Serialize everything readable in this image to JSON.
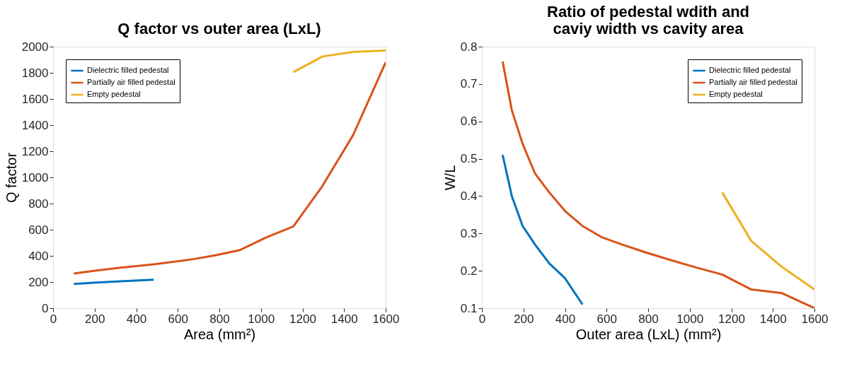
{
  "chart_data": [
    {
      "type": "line",
      "title": "Q factor vs outer area (LxL)",
      "xlabel": "Area (mm²)",
      "ylabel": "Q factor",
      "xlim": [
        0,
        1600
      ],
      "xticks": [
        0,
        200,
        400,
        600,
        800,
        1000,
        1200,
        1400,
        1600
      ],
      "ylim": [
        0,
        2000
      ],
      "yticks": [
        0,
        200,
        400,
        600,
        800,
        1000,
        1200,
        1400,
        1600,
        1800,
        2000
      ],
      "grid": false,
      "legend": "top left",
      "marker": "none",
      "line_style": "solid",
      "series": [
        {
          "name": "Dielectric filled pedestal",
          "color": "#0072bd",
          "x": [
            100,
            196,
            324,
            484
          ],
          "values": [
            185,
            195,
            205,
            218
          ]
        },
        {
          "name": "Partially air filled pedestal",
          "color": "#d95319",
          "x": [
            100,
            196,
            324,
            484,
            676,
            784,
            900,
            1024,
            1156,
            1296,
            1444,
            1600
          ],
          "values": [
            265,
            285,
            310,
            335,
            375,
            405,
            445,
            540,
            625,
            935,
            1325,
            1880
          ]
        },
        {
          "name": "Empty pedestal",
          "color": "#edb120",
          "x": [
            1156,
            1296,
            1444,
            1600
          ],
          "values": [
            1805,
            1925,
            1960,
            1970
          ]
        }
      ]
    },
    {
      "type": "line",
      "title": "Ratio of pedestal wdith and\ncaviy width vs cavity area",
      "xlabel": "Outer area (LxL) (mm²)",
      "ylabel": "W/L",
      "xlim": [
        0,
        1600
      ],
      "xticks": [
        0,
        200,
        400,
        600,
        800,
        1000,
        1200,
        1400,
        1600
      ],
      "ylim": [
        0.1,
        0.8
      ],
      "yticks": [
        0.1,
        0.2,
        0.3,
        0.4,
        0.5,
        0.6,
        0.7,
        0.8
      ],
      "grid": false,
      "legend": "top right",
      "marker": "none",
      "line_style": "solid",
      "series": [
        {
          "name": "Dielectric filled pedestal",
          "color": "#0072bd",
          "x": [
            100,
            144,
            196,
            256,
            324,
            400,
            484
          ],
          "values": [
            0.51,
            0.4,
            0.32,
            0.27,
            0.22,
            0.18,
            0.11
          ]
        },
        {
          "name": "Partially air filled pedestal",
          "color": "#d95319",
          "x": [
            100,
            144,
            196,
            256,
            324,
            400,
            484,
            576,
            676,
            784,
            900,
            1024,
            1156,
            1296,
            1444,
            1600
          ],
          "values": [
            0.76,
            0.63,
            0.54,
            0.46,
            0.41,
            0.36,
            0.32,
            0.29,
            0.27,
            0.25,
            0.23,
            0.21,
            0.19,
            0.15,
            0.14,
            0.1
          ]
        },
        {
          "name": "Empty pedestal",
          "color": "#edb120",
          "x": [
            1156,
            1296,
            1444,
            1600
          ],
          "values": [
            0.41,
            0.28,
            0.21,
            0.15
          ]
        }
      ]
    }
  ]
}
